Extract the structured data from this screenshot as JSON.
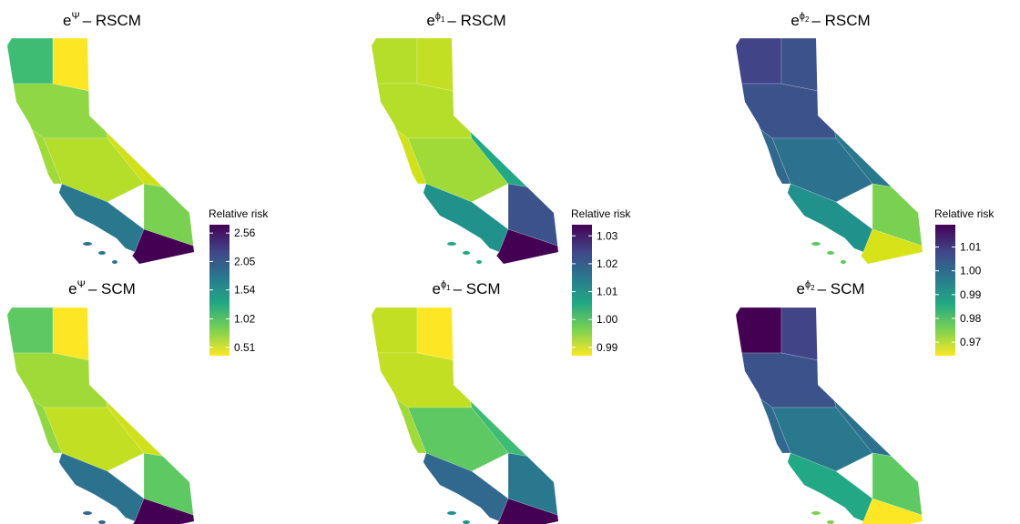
{
  "panels": [
    {
      "base": "e",
      "sup": "Ψ",
      "label": "– RSCM"
    },
    {
      "base": "e",
      "sup": "ϕ",
      "sub": "1",
      "label": "– RSCM"
    },
    {
      "base": "e",
      "sup": "ϕ",
      "sub": "2",
      "label": "– RSCM"
    },
    {
      "base": "e",
      "sup": "Ψ",
      "label": "– SCM"
    },
    {
      "base": "e",
      "sup": "ϕ",
      "sub": "1",
      "label": "– SCM"
    },
    {
      "base": "e",
      "sup": "ϕ",
      "sub": "2",
      "label": "– SCM"
    }
  ],
  "legends": [
    {
      "title": "Relative risk",
      "lim": [
        0.36,
        2.71
      ],
      "ticks": [
        2.56,
        2.05,
        1.54,
        1.02,
        0.51
      ]
    },
    {
      "title": "Relative risk",
      "lim": [
        0.987,
        1.034
      ],
      "ticks": [
        1.03,
        1.02,
        1.01,
        {
          "value": 1,
          "label": "1.00"
        },
        0.99
      ]
    },
    {
      "title": "Relative risk",
      "lim": [
        0.9643,
        1.0194
      ],
      "ticks": [
        1.01,
        {
          "value": 1,
          "label": "1.00"
        },
        0.99,
        0.98,
        0.97
      ]
    }
  ]
}
